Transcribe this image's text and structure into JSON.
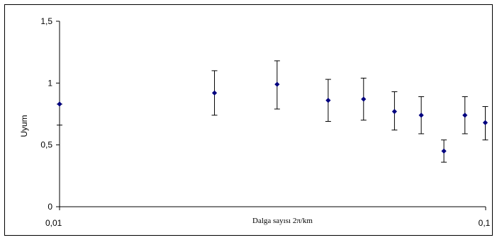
{
  "chart_data": {
    "type": "scatter",
    "title": "",
    "xlabel": "Dalga sayısı 2π/km",
    "ylabel": "Uyum",
    "xscale": "log",
    "xlim": [
      0.01,
      0.1
    ],
    "ylim": [
      0,
      1.5
    ],
    "yticks": [
      "0",
      "0,5",
      "1",
      "1,5"
    ],
    "xticks": [
      {
        "value": 0.01,
        "label": "0,01"
      },
      {
        "value": 0.1,
        "label": "0,1"
      }
    ],
    "grid": false,
    "marker_color": "#00007f",
    "points": [
      {
        "x": 0.01,
        "y": 0.83,
        "lo": 0.66,
        "hi": 0.83
      },
      {
        "x": 0.0231,
        "y": 0.92,
        "lo": 0.74,
        "hi": 1.1
      },
      {
        "x": 0.0324,
        "y": 0.99,
        "lo": 0.79,
        "hi": 1.18
      },
      {
        "x": 0.0427,
        "y": 0.86,
        "lo": 0.69,
        "hi": 1.03
      },
      {
        "x": 0.0517,
        "y": 0.87,
        "lo": 0.7,
        "hi": 1.04
      },
      {
        "x": 0.0611,
        "y": 0.77,
        "lo": 0.62,
        "hi": 0.93
      },
      {
        "x": 0.0706,
        "y": 0.74,
        "lo": 0.59,
        "hi": 0.89
      },
      {
        "x": 0.0798,
        "y": 0.45,
        "lo": 0.36,
        "hi": 0.54
      },
      {
        "x": 0.0894,
        "y": 0.74,
        "lo": 0.59,
        "hi": 0.89
      },
      {
        "x": 0.0998,
        "y": 0.68,
        "lo": 0.54,
        "hi": 0.81
      }
    ]
  }
}
